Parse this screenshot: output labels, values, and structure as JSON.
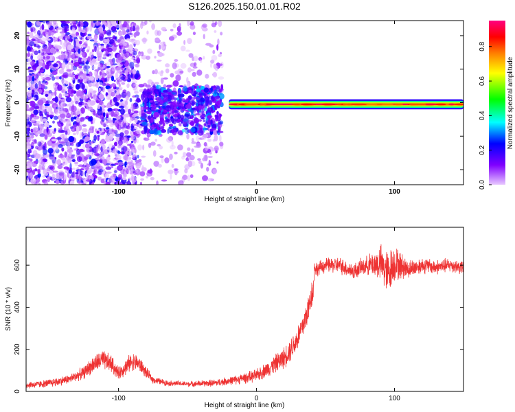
{
  "chart_data": [
    {
      "type": "heatmap",
      "title": "S126.2025.150.01.01.R02",
      "xlabel": "Height of straight line (km)",
      "ylabel": "Frequency (Hz)",
      "xlim": [
        -167,
        150
      ],
      "ylim": [
        -24.5,
        24.5
      ],
      "x_ticks": [
        -100,
        0,
        100
      ],
      "y_ticks": [
        -20,
        -10,
        0,
        10,
        20
      ],
      "colorbar": {
        "label": "Normalized spectral amplitude",
        "range": [
          0.0,
          0.95
        ],
        "ticks": [
          0.0,
          0.2,
          0.4,
          0.6,
          0.8
        ],
        "colormap": [
          "#e8c8ff",
          "#8000ff",
          "#0000ff",
          "#00ffff",
          "#00ff00",
          "#ffff00",
          "#ff8000",
          "#ff0000",
          "#ff0080"
        ]
      },
      "regions": [
        {
          "desc": "sparse scattered noise",
          "x": [
            -167,
            -85
          ],
          "y": [
            -24.5,
            24.5
          ],
          "amplitude": [
            0.0,
            0.25
          ]
        },
        {
          "desc": "faint noise",
          "x": [
            -85,
            -25
          ],
          "y": [
            -24.5,
            24.5
          ],
          "amplitude": [
            0.0,
            0.1
          ]
        },
        {
          "desc": "cluster",
          "x": [
            -83,
            -25
          ],
          "y": [
            -9,
            5
          ],
          "amplitude": [
            0.1,
            0.35
          ]
        },
        {
          "desc": "band",
          "x": [
            -20,
            150
          ],
          "y": [
            -2,
            1
          ],
          "center": -0.5,
          "amplitude": [
            0.2,
            0.9
          ]
        }
      ]
    },
    {
      "type": "line",
      "xlabel": "Height of straight line (km)",
      "ylabel": "SNR (10 * v/v)",
      "xlim": [
        -167,
        150
      ],
      "ylim": [
        0,
        780
      ],
      "x_ticks": [
        -100,
        0,
        100
      ],
      "y_ticks": [
        0,
        200,
        400,
        600
      ],
      "color": "#ee3333",
      "x": [
        -167,
        -155,
        -145,
        -135,
        -125,
        -120,
        -112,
        -105,
        -100,
        -95,
        -90,
        -85,
        -80,
        -75,
        -65,
        -50,
        -30,
        -15,
        0,
        10,
        20,
        28,
        33,
        36,
        38,
        40,
        41,
        42,
        44,
        50,
        60,
        70,
        80,
        90,
        95,
        100,
        110,
        120,
        130,
        140,
        150
      ],
      "values": [
        30,
        35,
        45,
        60,
        90,
        120,
        150,
        130,
        85,
        115,
        145,
        130,
        90,
        55,
        40,
        35,
        40,
        55,
        75,
        115,
        160,
        230,
        300,
        360,
        400,
        470,
        470,
        590,
        580,
        600,
        600,
        570,
        600,
        610,
        560,
        610,
        580,
        600,
        590,
        600,
        590
      ],
      "noise_amplitude": [
        20,
        20,
        25,
        25,
        35,
        45,
        55,
        50,
        35,
        45,
        50,
        45,
        30,
        20,
        15,
        15,
        20,
        25,
        35,
        45,
        60,
        70,
        75,
        80,
        80,
        80,
        60,
        45,
        40,
        40,
        45,
        45,
        50,
        100,
        130,
        100,
        50,
        45,
        40,
        40,
        40
      ]
    }
  ]
}
